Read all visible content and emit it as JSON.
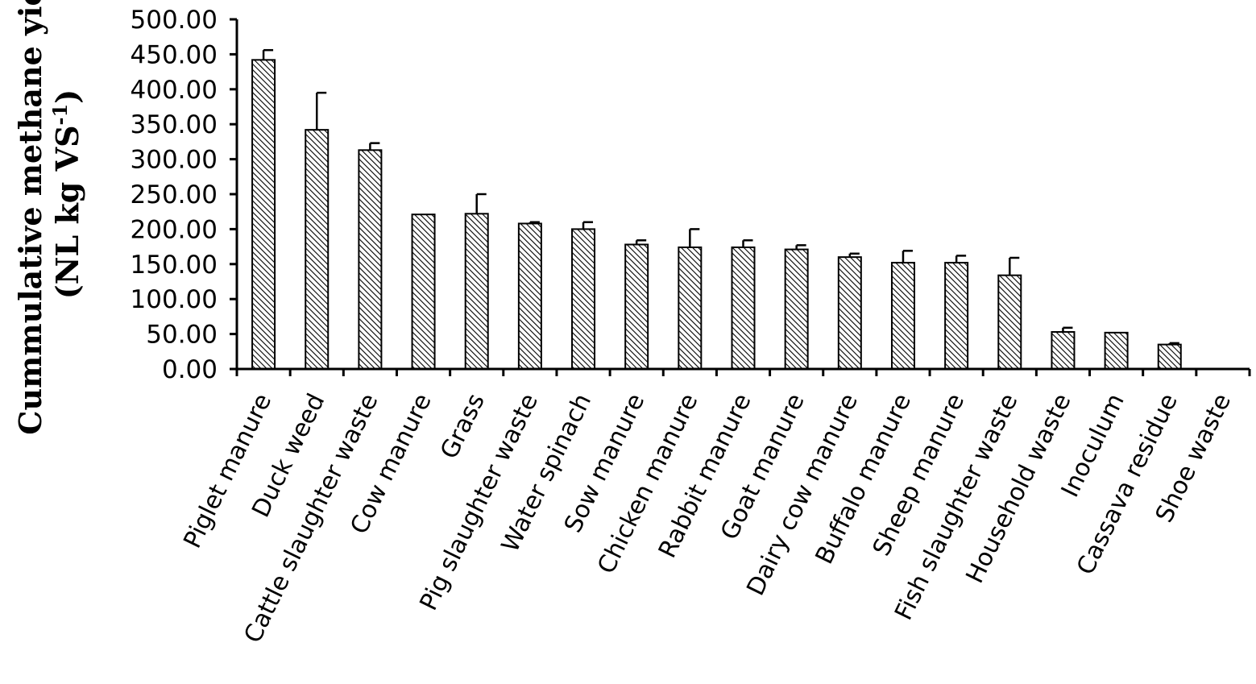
{
  "chart_data": {
    "type": "bar",
    "title": "",
    "xlabel": "",
    "ylabel_line1": "Cummulative methane yield",
    "ylabel_line2_base": "(NL kg VS",
    "ylabel_line2_sup": "-1",
    "ylabel_line2_end": ")",
    "ylim": [
      0,
      500
    ],
    "y_ticks": [
      "0.00",
      "50.00",
      "100.00",
      "150.00",
      "200.00",
      "250.00",
      "300.00",
      "350.00",
      "400.00",
      "450.00",
      "500.00"
    ],
    "categories": [
      "Piglet manure",
      "Duck weed",
      "Cattle slaughter  waste",
      "Cow manure",
      "Grass",
      "Pig slaughter  waste",
      "Water spinach",
      "Sow manure",
      "Chicken manure",
      "Rabbit manure",
      "Goat manure",
      "Dairy cow manure",
      "Buffalo manure",
      "Sheep manure",
      "Fish slaughter  waste",
      "Household waste",
      "Inoculum",
      "Cassava  residue",
      "Shoe waste"
    ],
    "values": [
      442,
      342,
      313,
      221,
      222,
      208,
      200,
      178,
      174,
      174,
      171,
      160,
      152,
      152,
      134,
      53,
      52,
      35,
      0
    ],
    "errors": [
      14,
      53,
      10,
      0,
      28,
      2,
      10,
      6,
      26,
      10,
      6,
      5,
      17,
      10,
      25,
      6,
      0,
      2,
      0
    ],
    "grid": false,
    "legend": "none"
  }
}
